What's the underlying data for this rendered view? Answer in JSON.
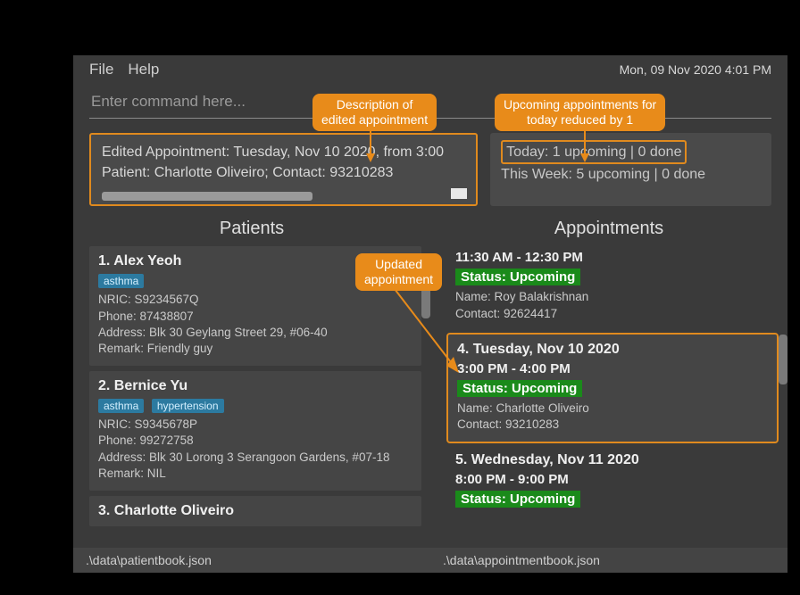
{
  "menu": {
    "file": "File",
    "help": "Help"
  },
  "datetime": "Mon, 09 Nov 2020 4:01 PM",
  "command_placeholder": "Enter command here...",
  "result": {
    "line1": "Edited Appointment: Tuesday, Nov 10 2020, from 3:00",
    "line2": "Patient: Charlotte Oliveiro; Contact: 93210283"
  },
  "stats": {
    "today": "Today: 1 upcoming | 0 done",
    "week": "This Week: 5 upcoming | 0 done"
  },
  "headers": {
    "patients": "Patients",
    "appointments": "Appointments"
  },
  "patients": [
    {
      "title": "1.  Alex Yeoh",
      "tags": [
        "asthma"
      ],
      "nric": "NRIC: S9234567Q",
      "phone": "Phone: 87438807",
      "address": "Address: Blk 30 Geylang Street 29, #06-40",
      "remark": "Remark: Friendly guy"
    },
    {
      "title": "2.  Bernice Yu",
      "tags": [
        "asthma",
        "hypertension"
      ],
      "nric": "NRIC: S9345678P",
      "phone": "Phone: 99272758",
      "address": "Address: Blk 30 Lorong 3 Serangoon Gardens, #07-18",
      "remark": "Remark: NIL"
    },
    {
      "title": "3.  Charlotte Oliveiro"
    }
  ],
  "appointments": {
    "partial_top": {
      "time": "11:30 AM - 12:30 PM",
      "status": "Status: Upcoming",
      "name": "Name: Roy Balakrishnan",
      "contact": "Contact: 92624417"
    },
    "highlighted": {
      "title": "4.  Tuesday, Nov 10 2020",
      "time": "3:00 PM - 4:00 PM",
      "status": "Status: Upcoming",
      "name": "Name: Charlotte Oliveiro",
      "contact": "Contact: 93210283"
    },
    "next": {
      "title": "5.  Wednesday, Nov 11 2020",
      "time": "8:00 PM - 9:00 PM",
      "status": "Status: Upcoming"
    }
  },
  "status_paths": {
    "patients": ".\\data\\patientbook.json",
    "appointments": ".\\data\\appointmentbook.json"
  },
  "callouts": {
    "desc": "Description of\nedited appointment",
    "upcoming": "Upcoming appointments for\ntoday reduced by 1",
    "updated": "Updated\nappointment"
  },
  "colors": {
    "highlight_border": "#e08a1e",
    "callout_bg": "#e88b1a",
    "tag_bg": "#2c7aa0",
    "status_bg": "#1a8a1a",
    "panel_bg": "#4a4a4a",
    "card_bg": "#454545",
    "app_bg": "#3a3a3a"
  }
}
